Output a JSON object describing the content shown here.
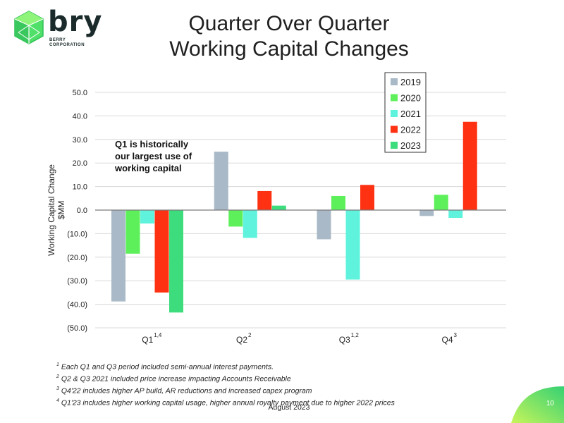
{
  "logo": {
    "word": "bry",
    "sub_line1": "BERRY",
    "sub_line2": "CORPORATION"
  },
  "title_line1": "Quarter Over Quarter",
  "title_line2": "Working Capital Changes",
  "chart_data": {
    "type": "bar",
    "categories": [
      "Q1",
      "Q2",
      "Q3",
      "Q4"
    ],
    "category_superscripts": [
      "1,4",
      "2",
      "1,2",
      "3"
    ],
    "series": [
      {
        "name": "2019",
        "color": "#a9b9c7",
        "values": [
          -38.8,
          24.8,
          -12.4,
          -2.5
        ]
      },
      {
        "name": "2020",
        "color": "#5ef05a",
        "values": [
          -18.5,
          -7.0,
          6.0,
          6.5
        ]
      },
      {
        "name": "2021",
        "color": "#5ff2dc",
        "values": [
          -5.7,
          -11.8,
          -29.5,
          -3.3
        ]
      },
      {
        "name": "2022",
        "color": "#fe3212",
        "values": [
          -35.0,
          8.1,
          10.7,
          37.5
        ]
      },
      {
        "name": "2023",
        "color": "#3ddd7d",
        "values": [
          -43.5,
          1.9,
          null,
          null
        ]
      }
    ],
    "ylabel_line1": "Working Capital Change",
    "ylabel_line2": "$MM",
    "ylim": [
      -50,
      50
    ],
    "yticks": [
      50,
      40,
      30,
      20,
      10,
      0,
      -10,
      -20,
      -30,
      -40,
      -50
    ],
    "ytick_labels": [
      "50.0",
      "40.0",
      "30.0",
      "20.0",
      "10.0",
      "0.0",
      "(10.0)",
      "(20.0)",
      "(30.0)",
      "(40.0)",
      "(50.0)"
    ],
    "grid": true,
    "legend_position": "top-right",
    "annotation": [
      "Q1 is historically",
      "our largest use of",
      "working capital"
    ]
  },
  "footnotes": [
    {
      "mark": "1",
      "text": "Each Q1 and Q3 period included semi-annual interest payments."
    },
    {
      "mark": "2",
      "text": "Q2 & Q3 2021 included price increase impacting Accounts Receivable"
    },
    {
      "mark": "3",
      "text": "Q4'22 includes higher AP build, AR reductions and increased capex program"
    },
    {
      "mark": "4",
      "text": "Q1'23 includes higher working capital usage, higher annual royalty payment due to higher 2022 prices"
    }
  ],
  "date": "August 2023",
  "page_number": "10",
  "accent_color": "#4fd26e"
}
